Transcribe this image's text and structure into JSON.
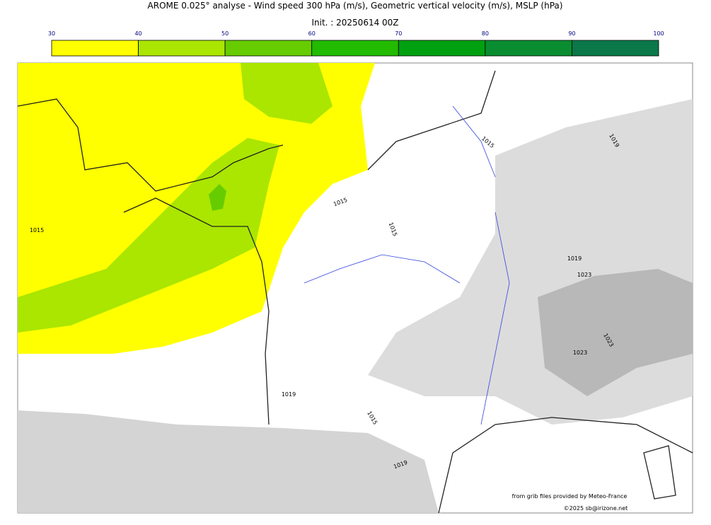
{
  "header": {
    "title": "AROME 0.025° analyse - Wind speed 300 hPa (m/s), Geometric vertical velocity (m/s), MSLP (hPa)",
    "init": "Init. : 20250614 00Z"
  },
  "colorbar": {
    "ticks": [
      30,
      40,
      50,
      60,
      70,
      80,
      90,
      100
    ],
    "colors": [
      "#ffff00",
      "#aae600",
      "#66cc00",
      "#22bb00",
      "#00a010",
      "#0a8c30",
      "#0a7848"
    ]
  },
  "isobar_labels": [
    "1015",
    "1015",
    "1015",
    "1015",
    "1019",
    "1019",
    "1019",
    "1015",
    "1023",
    "1023",
    "1023",
    "1019"
  ],
  "credits": {
    "source": "from grib files provided by Meteo-France",
    "copyright": "©2025 sb@irizone.net"
  }
}
